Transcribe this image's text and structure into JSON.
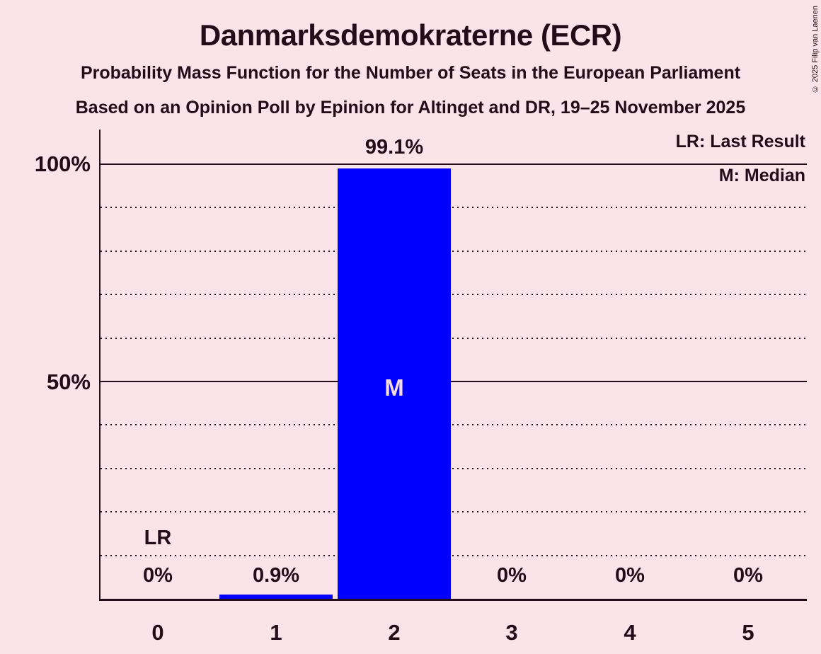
{
  "chart_data": {
    "type": "bar",
    "title": "Danmarksdemokraterne (ECR)",
    "subtitle1": "Probability Mass Function for the Number of Seats in the European Parliament",
    "subtitle2": "Based on an Opinion Poll by Epinion for Altinget and DR, 19–25 November 2025",
    "categories": [
      "0",
      "1",
      "2",
      "3",
      "4",
      "5"
    ],
    "values": [
      0,
      0.9,
      99.1,
      0,
      0,
      0
    ],
    "bar_labels": [
      "0%",
      "0.9%",
      "99.1%",
      "0%",
      "0%",
      "0%"
    ],
    "xlabel": "",
    "ylabel": "",
    "ylim": [
      0,
      100
    ],
    "ytick_labels": {
      "y100": "100%",
      "y50": "50%"
    },
    "grid": "dotted lines every 10%, solid at 50% and 100%",
    "legend_position": "top-right",
    "legend": {
      "last_result": "LR: Last Result",
      "median": "M: Median"
    },
    "annotations": {
      "last_result_label": "LR",
      "last_result_seat": 0,
      "median_label": "M",
      "median_seat": 2
    },
    "colors": {
      "background": "#fce2e9",
      "text": "#260b18",
      "bar": "#0000ff",
      "median_text": "#f6dbe4"
    },
    "copyright": "© 2025 Filip van Laenen"
  }
}
